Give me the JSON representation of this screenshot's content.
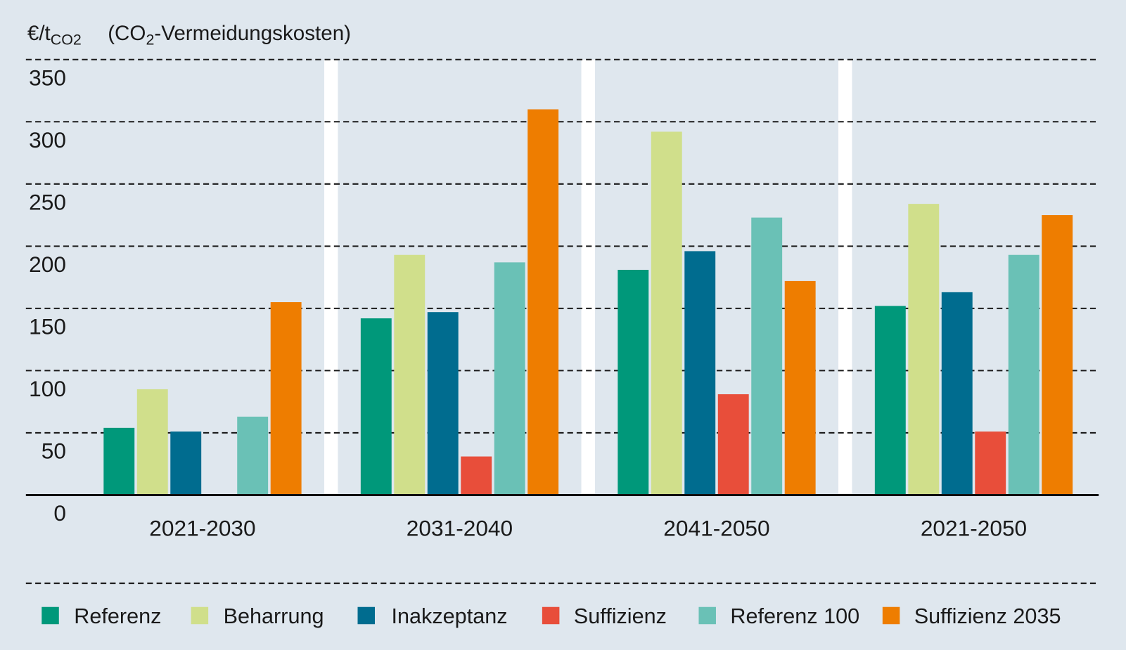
{
  "chart_data": {
    "type": "bar",
    "ylabel": {
      "text": "€/t",
      "sub": "CO2"
    },
    "title": {
      "start": "(CO",
      "sub": "2",
      "end": "-Vermeidungskosten)"
    },
    "categories": [
      "2021-2030",
      "2031-2040",
      "2041-2050",
      "2021-2050"
    ],
    "ylim": [
      0,
      350
    ],
    "yticks": [
      0,
      50,
      100,
      150,
      200,
      250,
      300,
      350
    ],
    "grid": true,
    "legend_position": "bottom",
    "series": [
      {
        "name": "Referenz",
        "color": "#00987a",
        "values": [
          54,
          142,
          181,
          152
        ]
      },
      {
        "name": "Beharrung",
        "color": "#d0df8b",
        "values": [
          85,
          193,
          292,
          234
        ]
      },
      {
        "name": "Inakzeptanz",
        "color": "#006c8f",
        "values": [
          51,
          147,
          196,
          163
        ]
      },
      {
        "name": "Suffizienz",
        "color": "#e84e3a",
        "values": [
          null,
          31,
          81,
          51
        ]
      },
      {
        "name": "Referenz 100",
        "color": "#6ac1b6",
        "values": [
          63,
          187,
          223,
          193
        ]
      },
      {
        "name": "Suffizienz 2035",
        "color": "#ee7d00",
        "values": [
          155,
          310,
          172,
          225
        ]
      }
    ]
  },
  "colors": {
    "background": "#dfe7ee",
    "separator": "#ffffff"
  }
}
